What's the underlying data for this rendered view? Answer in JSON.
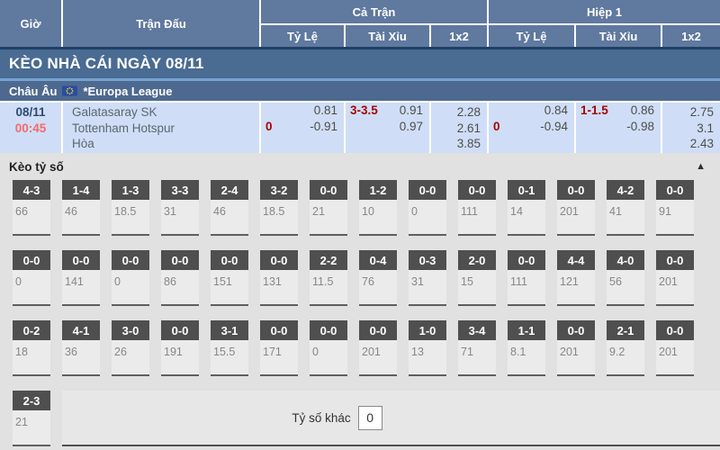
{
  "header": {
    "time_col": "Giờ",
    "match_col": "Trận Đấu",
    "full_match_group": "Cả Trận",
    "first_half_group": "Hiệp 1",
    "sub_cols": {
      "handicap": "Tỷ Lệ",
      "over_under": "Tài Xỉu",
      "one_x_two": "1x2"
    }
  },
  "banner": {
    "title": "KÈO NHÀ CÁI NGÀY 08/11"
  },
  "league_bar": {
    "region": "Châu Âu",
    "league": "*Europa League",
    "flag_icon": "eu-flag"
  },
  "match": {
    "date": "08/11",
    "time": "00:45",
    "home_team": "Galatasaray SK",
    "away_team": "Tottenham Hotspur",
    "draw_label": "Hòa",
    "full": {
      "handicap": {
        "line": "0",
        "odds_top": "0.81",
        "odds_bottom": "-0.91"
      },
      "over_under": {
        "line": "3-3.5",
        "odds_top": "0.91",
        "odds_bottom": "0.97"
      },
      "one_x_two": [
        "2.28",
        "2.61",
        "3.85"
      ]
    },
    "half": {
      "handicap": {
        "line": "0",
        "odds_top": "0.84",
        "odds_bottom": "-0.94"
      },
      "over_under": {
        "line": "1-1.5",
        "odds_top": "0.86",
        "odds_bottom": "-0.98"
      },
      "one_x_two": [
        "2.75",
        "3.1",
        "2.43"
      ]
    }
  },
  "score_section": {
    "title": "Kèo tỷ số",
    "collapse_icon": "triangle-up",
    "rows": [
      [
        {
          "score": "4-3",
          "odds": "66"
        },
        {
          "score": "1-4",
          "odds": "46"
        },
        {
          "score": "1-3",
          "odds": "18.5"
        },
        {
          "score": "3-3",
          "odds": "31"
        },
        {
          "score": "2-4",
          "odds": "46"
        },
        {
          "score": "3-2",
          "odds": "18.5"
        },
        {
          "score": "0-0",
          "odds": "21"
        },
        {
          "score": "1-2",
          "odds": "10"
        },
        {
          "score": "0-0",
          "odds": "0"
        },
        {
          "score": "0-0",
          "odds": "111"
        },
        {
          "score": "0-1",
          "odds": "14"
        },
        {
          "score": "0-0",
          "odds": "201"
        },
        {
          "score": "4-2",
          "odds": "41"
        },
        {
          "score": "0-0",
          "odds": "91"
        }
      ],
      [
        {
          "score": "0-0",
          "odds": "0"
        },
        {
          "score": "0-0",
          "odds": "141"
        },
        {
          "score": "0-0",
          "odds": "0"
        },
        {
          "score": "0-0",
          "odds": "86"
        },
        {
          "score": "0-0",
          "odds": "151"
        },
        {
          "score": "0-0",
          "odds": "131"
        },
        {
          "score": "2-2",
          "odds": "11.5"
        },
        {
          "score": "0-4",
          "odds": "76"
        },
        {
          "score": "0-3",
          "odds": "31"
        },
        {
          "score": "2-0",
          "odds": "15"
        },
        {
          "score": "0-0",
          "odds": "111"
        },
        {
          "score": "4-4",
          "odds": "121"
        },
        {
          "score": "4-0",
          "odds": "56"
        },
        {
          "score": "0-0",
          "odds": "201"
        }
      ],
      [
        {
          "score": "0-2",
          "odds": "18"
        },
        {
          "score": "4-1",
          "odds": "36"
        },
        {
          "score": "3-0",
          "odds": "26"
        },
        {
          "score": "0-0",
          "odds": "191"
        },
        {
          "score": "3-1",
          "odds": "15.5"
        },
        {
          "score": "0-0",
          "odds": "171"
        },
        {
          "score": "0-0",
          "odds": "0"
        },
        {
          "score": "0-0",
          "odds": "201"
        },
        {
          "score": "1-0",
          "odds": "13"
        },
        {
          "score": "3-4",
          "odds": "71"
        },
        {
          "score": "1-1",
          "odds": "8.1"
        },
        {
          "score": "0-0",
          "odds": "201"
        },
        {
          "score": "2-1",
          "odds": "9.2"
        },
        {
          "score": "0-0",
          "odds": "201"
        }
      ]
    ],
    "last_row": [
      {
        "score": "2-3",
        "odds": "21"
      }
    ],
    "other_score_label": "Tỷ số khác",
    "other_score_value": "0"
  },
  "colors": {
    "header_blue": "#60799f",
    "banner_blue": "#4a6b92",
    "league_blue": "#4e6990",
    "match_row_blue": "#cfdef6",
    "handicap_red": "#a80000",
    "time_red": "#f4696b",
    "score_box_gray": "#4f4f4f",
    "section_gray": "#e1e1e1"
  }
}
